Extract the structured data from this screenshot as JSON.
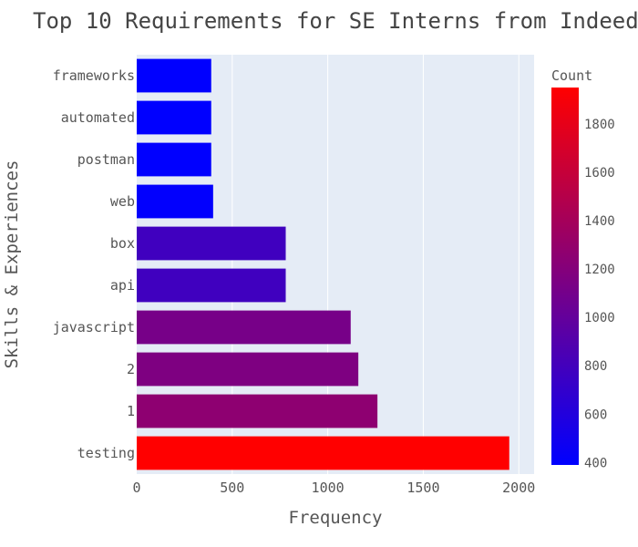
{
  "chart_data": {
    "type": "bar",
    "orientation": "horizontal",
    "title": "Top 10 Requirements for SE Interns from Indeed",
    "xlabel": "Frequency",
    "ylabel": "Skills & Experiences",
    "categories": [
      "testing",
      "1",
      "2",
      "javascript",
      "api",
      "box",
      "web",
      "postman",
      "automated",
      "frameworks"
    ],
    "values": [
      1950,
      1260,
      1160,
      1120,
      780,
      780,
      400,
      390,
      390,
      390
    ],
    "xlim": [
      0,
      2080
    ],
    "xticks": [
      "0",
      "500",
      "1000",
      "1500",
      "2000"
    ],
    "grid": true,
    "plot_background": "#e5ecf6",
    "colorbar": {
      "title": "Count",
      "range": [
        390,
        1950
      ],
      "colors": [
        "#0000ff",
        "#ff0000"
      ],
      "ticks": [
        "400",
        "600",
        "800",
        "1000",
        "1200",
        "1400",
        "1600",
        "1800"
      ]
    }
  }
}
